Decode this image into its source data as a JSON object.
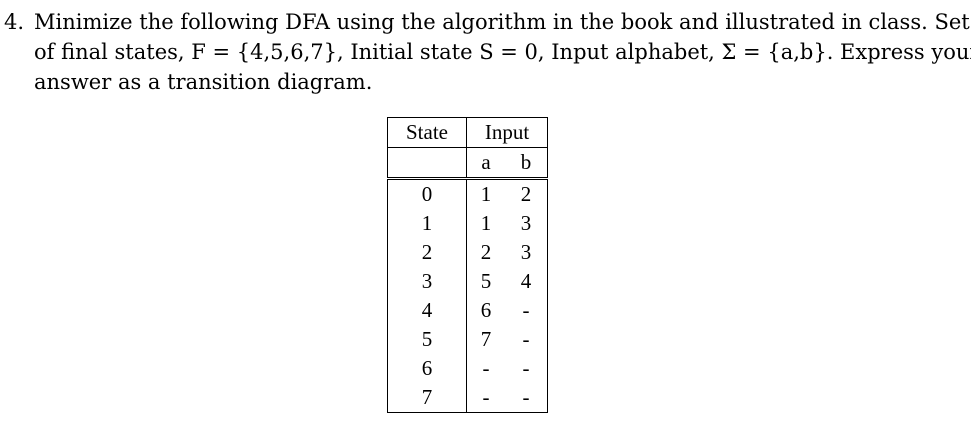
{
  "problem": {
    "number": "4.",
    "line1": "Minimize the following DFA using the algorithm in the book and illustrated in class. Set",
    "line2": "of final states, F = {4,5,6,7}, Initial state S = 0, Input alphabet, Σ = {a,b}. Express your",
    "line3": "answer as a transition diagram."
  },
  "table": {
    "header": {
      "state": "State",
      "input": "Input"
    },
    "subheader": {
      "a": "a",
      "b": "b"
    },
    "rows": [
      {
        "state": "0",
        "a": "1",
        "b": "2"
      },
      {
        "state": "1",
        "a": "1",
        "b": "3"
      },
      {
        "state": "2",
        "a": "2",
        "b": "3"
      },
      {
        "state": "3",
        "a": "5",
        "b": "4"
      },
      {
        "state": "4",
        "a": "6",
        "b": "-"
      },
      {
        "state": "5",
        "a": "7",
        "b": "-"
      },
      {
        "state": "6",
        "a": "-",
        "b": "-"
      },
      {
        "state": "7",
        "a": "-",
        "b": "-"
      }
    ]
  }
}
